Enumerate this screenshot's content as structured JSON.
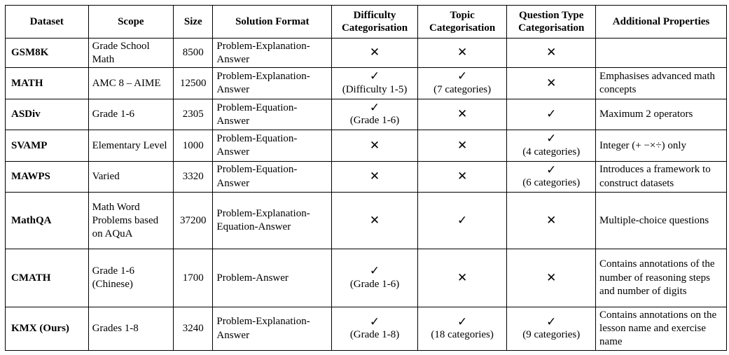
{
  "headers": [
    "Dataset",
    "Scope",
    "Size",
    "Solution Format",
    "Difficulty Categorisation",
    "Topic Categorisation",
    "Question Type Categorisation",
    "Additional Properties"
  ],
  "symbols": {
    "check": "✓",
    "cross": "✕"
  },
  "rows": [
    {
      "dataset": "GSM8K",
      "scope": "Grade School Math",
      "size": "8500",
      "format": "Problem-Explanation-Answer",
      "difficulty": {
        "mark": "cross",
        "note": ""
      },
      "topic": {
        "mark": "cross",
        "note": ""
      },
      "qtype": {
        "mark": "cross",
        "note": ""
      },
      "props": ""
    },
    {
      "dataset": "MATH",
      "scope": "AMC 8 – AIME",
      "size": "12500",
      "format": "Problem-Explanation-Answer",
      "difficulty": {
        "mark": "check",
        "note": "(Difficulty 1-5)"
      },
      "topic": {
        "mark": "check",
        "note": "(7 categories)"
      },
      "qtype": {
        "mark": "cross",
        "note": ""
      },
      "props": "Emphasises advanced math concepts"
    },
    {
      "dataset": "ASDiv",
      "scope": "Grade 1-6",
      "size": "2305",
      "format": "Problem-Equation-Answer",
      "difficulty": {
        "mark": "check",
        "note": "(Grade 1-6)"
      },
      "topic": {
        "mark": "cross",
        "note": ""
      },
      "qtype": {
        "mark": "check",
        "note": ""
      },
      "props": "Maximum 2 operators"
    },
    {
      "dataset": "SVAMP",
      "scope": "Elementary Level",
      "size": "1000",
      "format": "Problem-Equation-Answer",
      "difficulty": {
        "mark": "cross",
        "note": ""
      },
      "topic": {
        "mark": "cross",
        "note": ""
      },
      "qtype": {
        "mark": "check",
        "note": "(4 categories)"
      },
      "props": "Integer (+ −×÷) only"
    },
    {
      "dataset": "MAWPS",
      "scope": "Varied",
      "size": "3320",
      "format": "Problem-Equation-Answer",
      "difficulty": {
        "mark": "cross",
        "note": ""
      },
      "topic": {
        "mark": "cross",
        "note": ""
      },
      "qtype": {
        "mark": "check",
        "note": "(6 categories)"
      },
      "props": "Introduces a framework to construct datasets"
    },
    {
      "dataset": "MathQA",
      "scope": "Math Word Problems based on AQuA",
      "size": "37200",
      "format": "Problem-Explanation-Equation-Answer",
      "difficulty": {
        "mark": "cross",
        "note": ""
      },
      "topic": {
        "mark": "check",
        "note": ""
      },
      "qtype": {
        "mark": "cross",
        "note": ""
      },
      "props": "Multiple-choice questions"
    },
    {
      "dataset": "CMATH",
      "scope": "Grade 1-6 (Chinese)",
      "size": "1700",
      "format": "Problem-Answer",
      "difficulty": {
        "mark": "check",
        "note": "(Grade 1-6)"
      },
      "topic": {
        "mark": "cross",
        "note": ""
      },
      "qtype": {
        "mark": "cross",
        "note": ""
      },
      "props": "Contains annotations of the number of reasoning steps and number of digits"
    },
    {
      "dataset": "KMX (Ours)",
      "scope": "Grades 1-8",
      "size": "3240",
      "format": "Problem-Explanation-Answer",
      "difficulty": {
        "mark": "check",
        "note": "(Grade 1-8)"
      },
      "topic": {
        "mark": "check",
        "note": "(18 categories)"
      },
      "qtype": {
        "mark": "check",
        "note": "(9 categories)"
      },
      "props": "Contains annotations on the lesson name and exercise name"
    }
  ]
}
